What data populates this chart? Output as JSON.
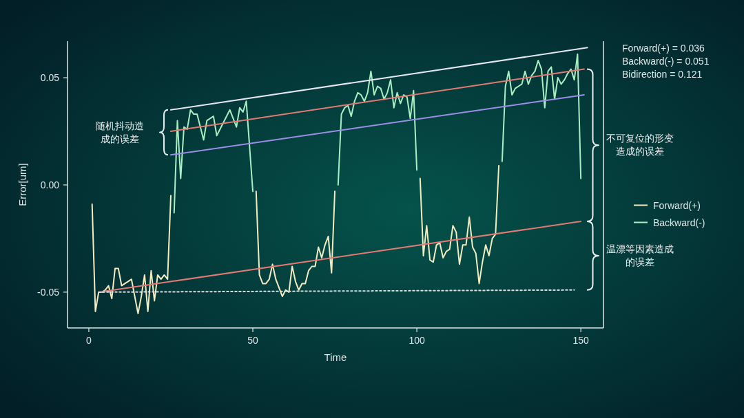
{
  "chart_data": {
    "type": "line",
    "xlabel": "Time",
    "ylabel": "Error[um]",
    "xlim": [
      -6.5,
      156.9
    ],
    "ylim": [
      -0.0667,
      0.067
    ],
    "xticks": [
      0,
      50,
      100,
      150
    ],
    "yticks": [
      {
        "value": -0.05,
        "label": "-0.05"
      },
      {
        "value": 0,
        "label": "0.00"
      },
      {
        "value": 0.05,
        "label": "0.05"
      }
    ],
    "grid": false,
    "legend": "right",
    "series": [
      {
        "name": "Forward(+)",
        "color": "#f3ecc2",
        "x": [
          1,
          2,
          3,
          4,
          5,
          6,
          7,
          8,
          9,
          10,
          11,
          12,
          13,
          14,
          15,
          16,
          17,
          18,
          19,
          20,
          21,
          22,
          23,
          24,
          25,
          38,
          51,
          52,
          53,
          54,
          55,
          56,
          57,
          58,
          59,
          60,
          61,
          62,
          63,
          64,
          65,
          66,
          67,
          68,
          69,
          70,
          71,
          72,
          73,
          74,
          75,
          88,
          101,
          102,
          103,
          104,
          105,
          106,
          107,
          108,
          109,
          110,
          111,
          112,
          113,
          114,
          115,
          116,
          117,
          118,
          119,
          120,
          121,
          122,
          123,
          124,
          125
        ],
        "values": [
          -0.009,
          -0.059,
          -0.05,
          -0.05,
          -0.049,
          -0.047,
          -0.053,
          -0.039,
          -0.039,
          -0.047,
          -0.046,
          -0.045,
          -0.044,
          -0.052,
          -0.06,
          -0.052,
          -0.042,
          -0.059,
          -0.04,
          -0.054,
          -0.042,
          -0.044,
          -0.042,
          -0.044,
          -0.005,
          null,
          -0.003,
          -0.042,
          -0.046,
          -0.046,
          -0.044,
          -0.037,
          -0.044,
          -0.048,
          -0.052,
          -0.049,
          -0.05,
          -0.038,
          -0.045,
          -0.049,
          -0.046,
          -0.046,
          -0.04,
          -0.038,
          -0.038,
          -0.029,
          -0.034,
          -0.028,
          -0.024,
          -0.041,
          -0.003,
          null,
          0.003,
          -0.033,
          -0.019,
          -0.035,
          -0.036,
          -0.028,
          -0.027,
          -0.034,
          -0.031,
          -0.03,
          -0.019,
          -0.022,
          -0.037,
          -0.028,
          -0.028,
          -0.015,
          -0.029,
          -0.032,
          -0.046,
          -0.036,
          -0.028,
          -0.033,
          -0.025,
          -0.023,
          0.009
        ]
      },
      {
        "name": "Backward(-)",
        "color": "#a9efc3",
        "x": [
          26,
          27,
          28,
          29,
          30,
          31,
          32,
          33,
          35,
          36,
          38,
          39,
          41,
          43,
          45,
          46,
          47,
          48,
          50,
          63,
          76,
          77,
          78,
          79,
          80,
          81,
          82,
          83,
          84,
          85,
          86,
          87,
          88,
          89,
          90,
          91,
          92,
          93,
          94,
          95,
          96,
          97,
          98,
          99,
          100,
          113,
          126,
          127,
          128,
          129,
          130,
          131,
          132,
          133,
          134,
          135,
          136,
          137,
          138,
          139,
          140,
          141,
          142,
          143,
          144,
          145,
          146,
          147,
          148,
          149,
          150
        ],
        "values": [
          -0.013,
          0.03,
          0.003,
          0.027,
          0.026,
          0.035,
          0.033,
          0.033,
          0.021,
          0.03,
          0.032,
          0.023,
          0.029,
          0.035,
          0.027,
          0.036,
          0.034,
          0.039,
          -0.003,
          null,
          0.0,
          0.033,
          0.036,
          0.037,
          0.032,
          0.039,
          0.043,
          0.042,
          0.039,
          0.043,
          0.053,
          0.042,
          0.046,
          0.045,
          0.04,
          0.043,
          0.049,
          0.036,
          0.043,
          0.038,
          0.042,
          0.041,
          0.031,
          0.044,
          0.007,
          null,
          0.011,
          0.046,
          0.053,
          0.042,
          0.045,
          0.046,
          0.047,
          0.053,
          0.047,
          0.051,
          0.053,
          0.058,
          0.054,
          0.036,
          0.053,
          0.055,
          0.04,
          0.05,
          0.047,
          0.049,
          0.052,
          0.054,
          0.049,
          0.061,
          0.003
        ]
      },
      {
        "type": "line",
        "color": "#e6e6f0",
        "x": [
          25,
          152
        ],
        "values": [
          0.035,
          0.064
        ]
      },
      {
        "type": "line",
        "color": "#e27a74",
        "x": [
          25,
          151
        ],
        "values": [
          0.025,
          0.054
        ]
      },
      {
        "type": "line",
        "color": "#9a8ee6",
        "x": [
          25,
          151
        ],
        "values": [
          0.014,
          0.042
        ]
      },
      {
        "type": "line",
        "color": "#e27a74",
        "x": [
          3,
          150
        ],
        "values": [
          -0.05,
          -0.017
        ]
      },
      {
        "type": "line",
        "color": "#d9dde0",
        "line_style": "dotted",
        "x": [
          3,
          148
        ],
        "values": [
          -0.05,
          -0.049
        ]
      }
    ],
    "annotations": [
      "Forward(+) = 0.036",
      "Backward(-) = 0.051",
      "Bidirection = 0.121",
      "随机抖动造成的误差",
      "不可复位的形变造成的误差",
      "温漂等因素造成的误差"
    ]
  }
}
